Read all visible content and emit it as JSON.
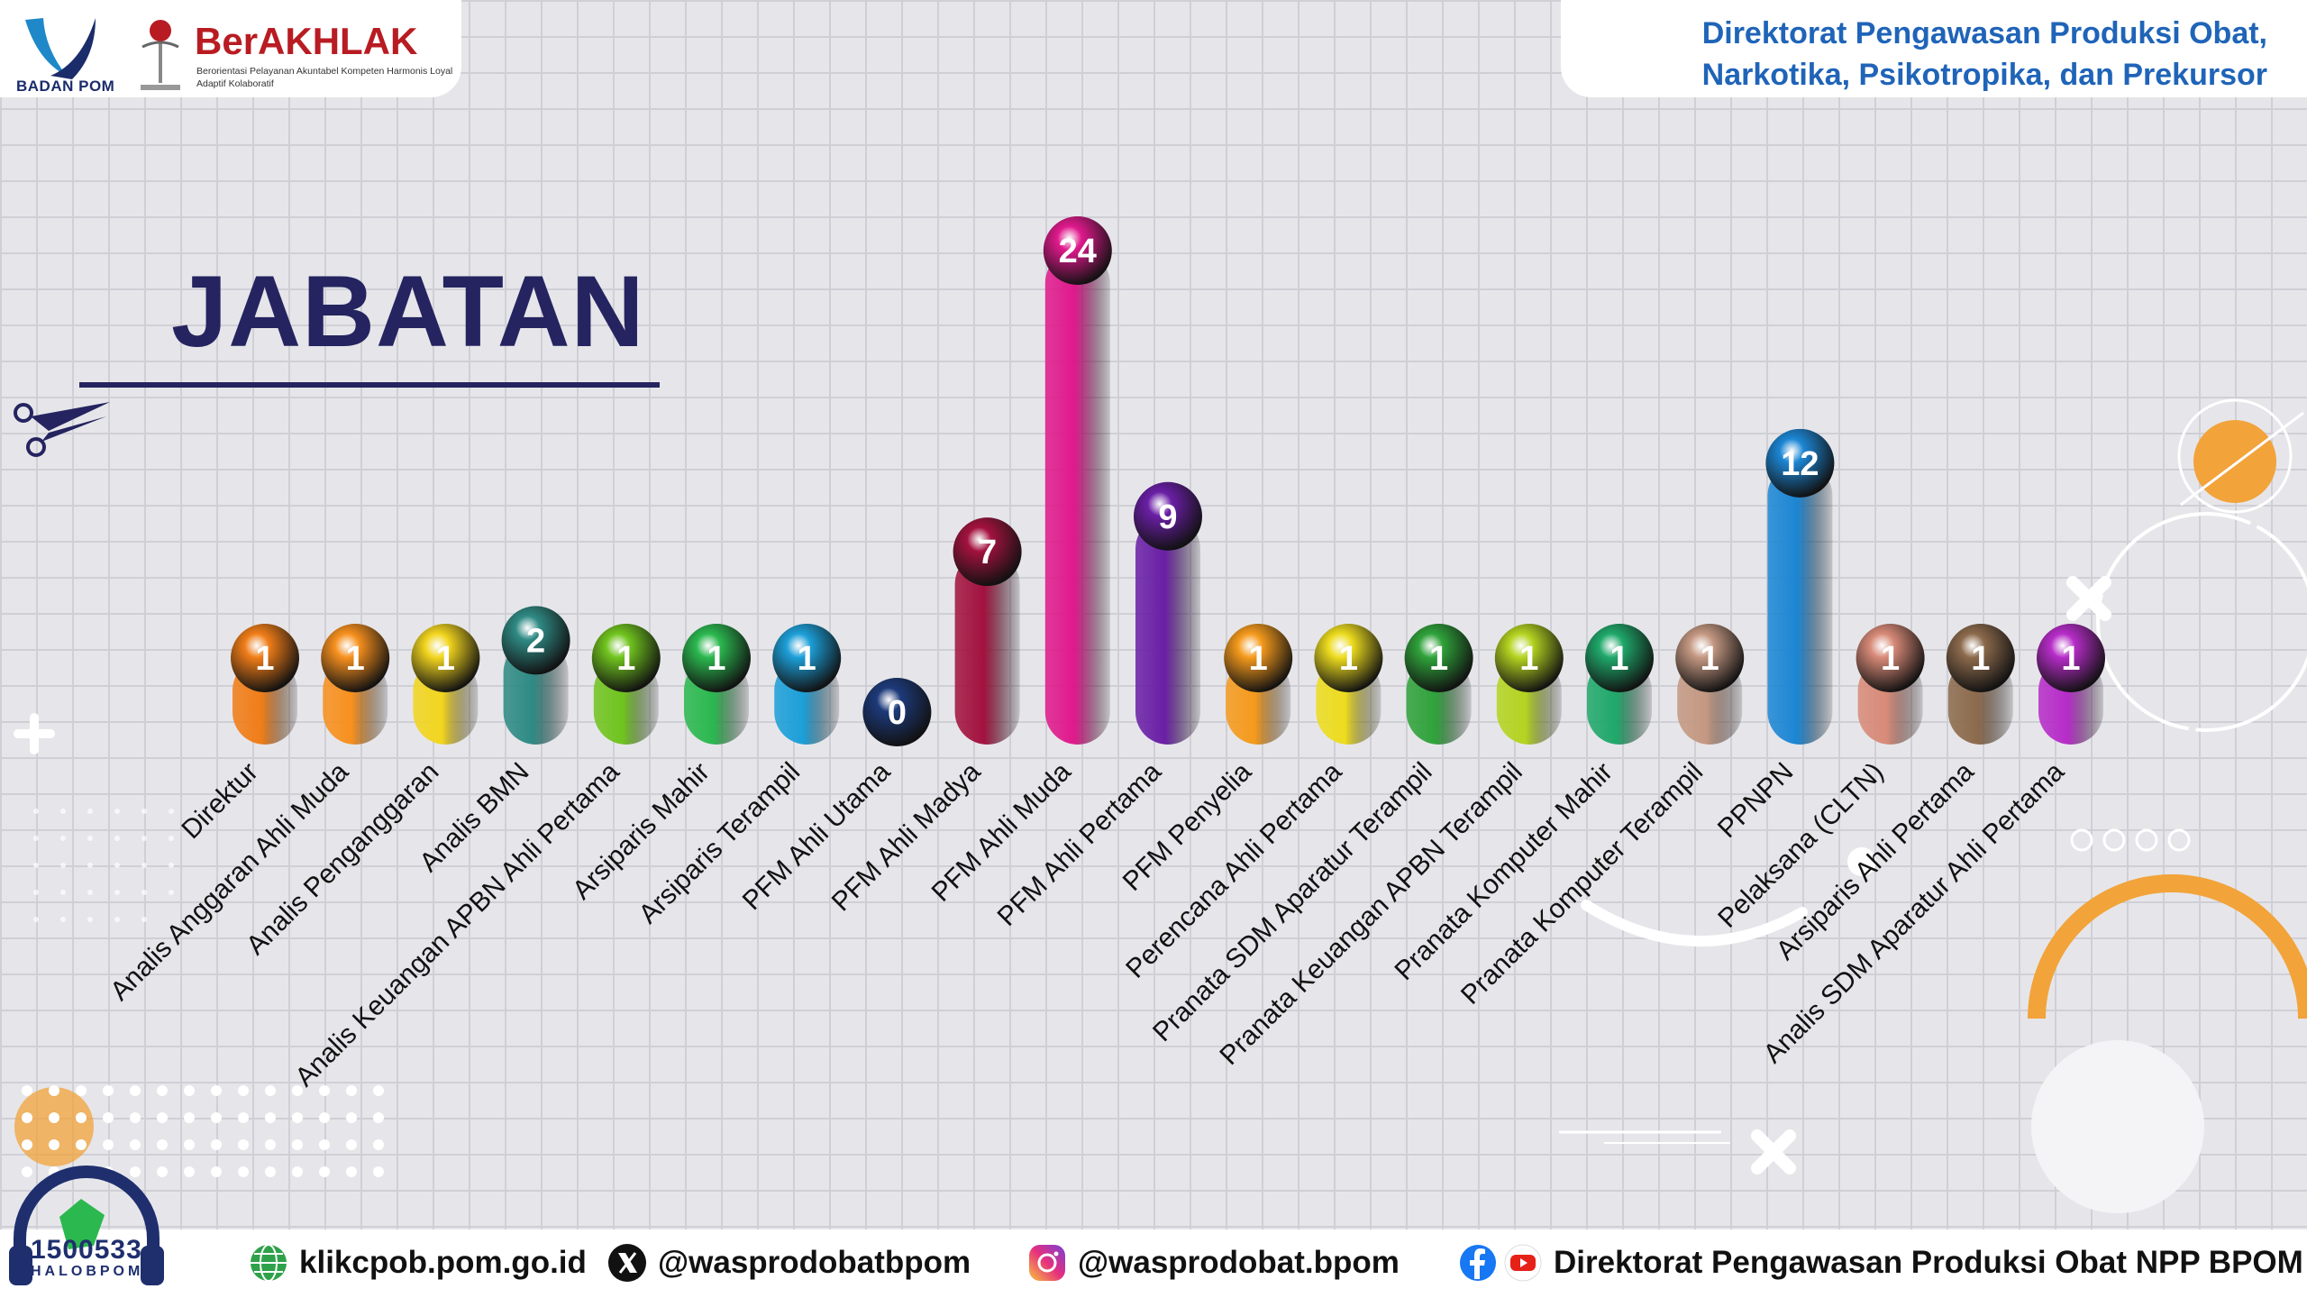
{
  "header": {
    "bpom_label": "BADAN POM",
    "akhlak_title": "BerAKHLAK",
    "akhlak_subtitle": "Berorientasi Pelayanan Akuntabel Kompeten Harmonis Loyal Adaptif Kolaboratif",
    "directorate": "Direktorat Pengawasan Produksi Obat,\nNarkotika, Psikotropika, dan Prekursor"
  },
  "page_title": "JABATAN",
  "chart_data": {
    "type": "bar",
    "title": "JABATAN",
    "xlabel": "",
    "ylabel": "",
    "categories": [
      "Direktur",
      "Analis Anggaran Ahli Muda",
      "Analis Penganggaran",
      "Analis BMN",
      "Analis Keuangan APBN Ahli Pertama",
      "Arsiparis Mahir",
      "Arsiparis Terampil",
      "PFM Ahli Utama",
      "PFM Ahli Madya",
      "PFM Ahli Muda",
      "PFM Ahli Pertama",
      "PFM Penyelia",
      "Perencana Ahli Pertama",
      "Pranata SDM Aparatur Terampil",
      "Pranata Keuangan APBN Terampil",
      "Pranata Komputer Mahir",
      "Pranata Komputer Terampil",
      "PPNPN",
      "Pelaksana (CLTN)",
      "Arsiparis Ahli Pertama",
      "Analis SDM Aparatur Ahli Pertama"
    ],
    "values": [
      1,
      1,
      1,
      2,
      1,
      1,
      1,
      0,
      7,
      24,
      9,
      1,
      1,
      1,
      1,
      1,
      1,
      12,
      1,
      1,
      1
    ],
    "value_labels": [
      "1",
      "1",
      "1",
      "2",
      "1",
      "1",
      "1",
      "0",
      "7",
      "24",
      "9",
      "1",
      "1",
      "1",
      "1",
      "1",
      "1",
      "12",
      "1",
      "1",
      "1"
    ],
    "colors": [
      "#f07d18",
      "#f7901e",
      "#f2d51e",
      "#2f8a84",
      "#70c41e",
      "#2bb84f",
      "#1c9fd8",
      "#1d3a7a",
      "#a3123e",
      "#e0198c",
      "#6a1fa6",
      "#f59a1c",
      "#eddc1e",
      "#2fa23a",
      "#b4d320",
      "#1fa86a",
      "#c49882",
      "#1c86d4",
      "#d88a78",
      "#8c6a4c",
      "#b62cc8"
    ],
    "grid": true,
    "legend": "none"
  },
  "footer": {
    "halo_number": "1500533",
    "halo_label": "HALOBPOM",
    "website": "klikcpob.pom.go.id",
    "x_handle": "@wasprodobatbpom",
    "instagram": "@wasprodobat.bpom",
    "social_name": "Direktorat Pengawasan Produksi Obat NPP BPOM"
  },
  "icons": [
    "globe-icon",
    "x-logo-icon",
    "instagram-icon",
    "facebook-icon",
    "youtube-icon",
    "headset-icon",
    "scissors-icon"
  ]
}
